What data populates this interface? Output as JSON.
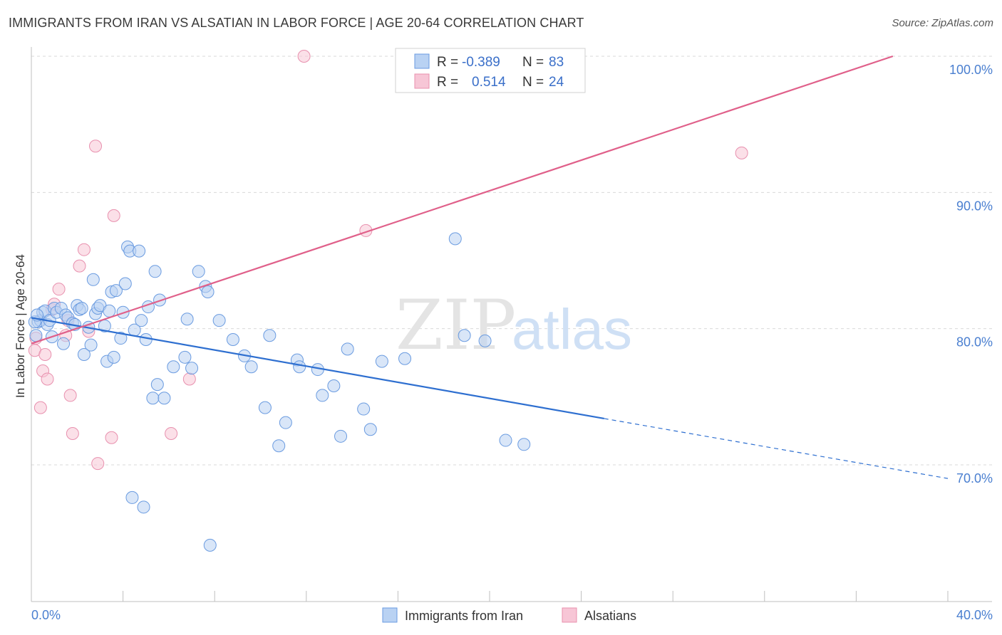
{
  "title": "IMMIGRANTS FROM IRAN VS ALSATIAN IN LABOR FORCE | AGE 20-64 CORRELATION CHART",
  "source": "Source: ZipAtlas.com",
  "colors": {
    "blue": "#6a9be0",
    "blue_fill": "#b9d2f3",
    "blue_line": "#2e6fd0",
    "pink": "#e890ae",
    "pink_fill": "#f7c6d6",
    "pink_line": "#e0608a",
    "grid": "#d9d9d9",
    "label": "#4a7fd0"
  },
  "legend": {
    "r_label": "R =",
    "n_label": "N =",
    "blue": {
      "r": "-0.389",
      "n": "83"
    },
    "pink": {
      "r": "0.514",
      "n": "24"
    }
  },
  "watermark": {
    "zip": "ZIP",
    "atlas": "atlas"
  },
  "chart_data": {
    "type": "scatter",
    "title": "IMMIGRANTS FROM IRAN VS ALSATIAN IN LABOR FORCE | AGE 20-64 CORRELATION CHART",
    "xlabel": "",
    "ylabel": "In Labor Force | Age 20-64",
    "xlim": [
      0,
      40
    ],
    "ylim": [
      61,
      102
    ],
    "x_tick_labels": [
      "0.0%",
      "40.0%"
    ],
    "y_ticks": [
      70,
      80,
      90,
      100
    ],
    "y_tick_labels": [
      "70.0%",
      "80.0%",
      "90.0%",
      "100.0%"
    ],
    "grid": true,
    "legend_position": "top-center",
    "series": [
      {
        "name": "Immigrants from Iran",
        "color": "#6a9be0",
        "trend": {
          "x0": 0,
          "y0": 80.8,
          "x1": 25,
          "y1": 73.4,
          "dash_to_x": 40,
          "dash_to_y": 69.0
        },
        "points": [
          [
            0.2,
            79.5
          ],
          [
            0.3,
            80.5
          ],
          [
            0.4,
            80.6
          ],
          [
            0.5,
            81.2
          ],
          [
            0.6,
            81.3
          ],
          [
            0.7,
            80.3
          ],
          [
            0.8,
            80.6
          ],
          [
            0.9,
            79.4
          ],
          [
            1.0,
            81.5
          ],
          [
            1.1,
            81.2
          ],
          [
            1.3,
            81.5
          ],
          [
            1.4,
            78.9
          ],
          [
            1.5,
            81.0
          ],
          [
            1.6,
            80.8
          ],
          [
            1.8,
            80.4
          ],
          [
            1.9,
            80.3
          ],
          [
            2.0,
            81.7
          ],
          [
            2.1,
            81.4
          ],
          [
            2.2,
            81.5
          ],
          [
            2.3,
            78.1
          ],
          [
            2.5,
            80.1
          ],
          [
            2.6,
            78.8
          ],
          [
            2.7,
            83.6
          ],
          [
            2.8,
            81.1
          ],
          [
            2.9,
            81.5
          ],
          [
            3.0,
            81.7
          ],
          [
            3.2,
            80.2
          ],
          [
            3.3,
            77.6
          ],
          [
            3.4,
            81.3
          ],
          [
            3.5,
            82.7
          ],
          [
            3.6,
            77.9
          ],
          [
            3.7,
            82.8
          ],
          [
            3.9,
            79.3
          ],
          [
            4.0,
            81.2
          ],
          [
            4.1,
            83.3
          ],
          [
            4.2,
            86.0
          ],
          [
            4.3,
            85.7
          ],
          [
            4.4,
            67.6
          ],
          [
            4.5,
            79.9
          ],
          [
            4.7,
            85.7
          ],
          [
            4.8,
            80.6
          ],
          [
            4.9,
            66.9
          ],
          [
            5.0,
            79.2
          ],
          [
            5.1,
            81.6
          ],
          [
            5.3,
            74.9
          ],
          [
            5.4,
            84.2
          ],
          [
            5.5,
            75.9
          ],
          [
            5.6,
            82.1
          ],
          [
            5.8,
            74.9
          ],
          [
            6.2,
            77.2
          ],
          [
            6.7,
            77.9
          ],
          [
            6.8,
            80.7
          ],
          [
            7.0,
            77.1
          ],
          [
            7.3,
            84.2
          ],
          [
            7.6,
            83.1
          ],
          [
            7.7,
            82.7
          ],
          [
            7.8,
            64.1
          ],
          [
            8.2,
            80.6
          ],
          [
            8.8,
            79.2
          ],
          [
            9.3,
            78.0
          ],
          [
            9.6,
            77.2
          ],
          [
            10.2,
            74.2
          ],
          [
            10.4,
            79.5
          ],
          [
            10.8,
            71.4
          ],
          [
            11.1,
            73.1
          ],
          [
            11.6,
            77.7
          ],
          [
            11.7,
            77.2
          ],
          [
            12.5,
            77.0
          ],
          [
            12.7,
            75.1
          ],
          [
            13.2,
            75.8
          ],
          [
            13.5,
            72.1
          ],
          [
            13.8,
            78.5
          ],
          [
            14.5,
            74.1
          ],
          [
            14.8,
            72.6
          ],
          [
            15.3,
            77.6
          ],
          [
            16.3,
            77.8
          ],
          [
            18.5,
            86.6
          ],
          [
            18.9,
            79.5
          ],
          [
            19.8,
            79.1
          ],
          [
            20.7,
            71.8
          ],
          [
            21.5,
            71.5
          ],
          [
            0.15,
            80.5
          ],
          [
            0.25,
            81.0
          ]
        ]
      },
      {
        "name": "Alsatians",
        "color": "#e890ae",
        "trend": {
          "x0": 0,
          "y0": 78.9,
          "x1": 37.6,
          "y1": 100.0
        },
        "points": [
          [
            0.15,
            78.4
          ],
          [
            0.2,
            79.3
          ],
          [
            0.4,
            74.2
          ],
          [
            0.5,
            76.9
          ],
          [
            0.6,
            78.1
          ],
          [
            0.7,
            76.3
          ],
          [
            0.9,
            81.4
          ],
          [
            1.0,
            81.8
          ],
          [
            1.2,
            82.9
          ],
          [
            1.5,
            79.5
          ],
          [
            1.6,
            80.6
          ],
          [
            1.7,
            75.1
          ],
          [
            1.8,
            72.3
          ],
          [
            2.1,
            84.6
          ],
          [
            2.3,
            85.8
          ],
          [
            2.5,
            79.8
          ],
          [
            2.8,
            93.4
          ],
          [
            2.9,
            70.1
          ],
          [
            3.5,
            72.0
          ],
          [
            3.6,
            88.3
          ],
          [
            6.1,
            72.3
          ],
          [
            6.9,
            76.3
          ],
          [
            11.9,
            100.0
          ],
          [
            14.6,
            87.2
          ]
        ]
      }
    ],
    "extra_pink_points": [
      [
        31.0,
        92.9
      ]
    ]
  },
  "bottom_legend": [
    "Immigrants from Iran",
    "Alsatians"
  ]
}
